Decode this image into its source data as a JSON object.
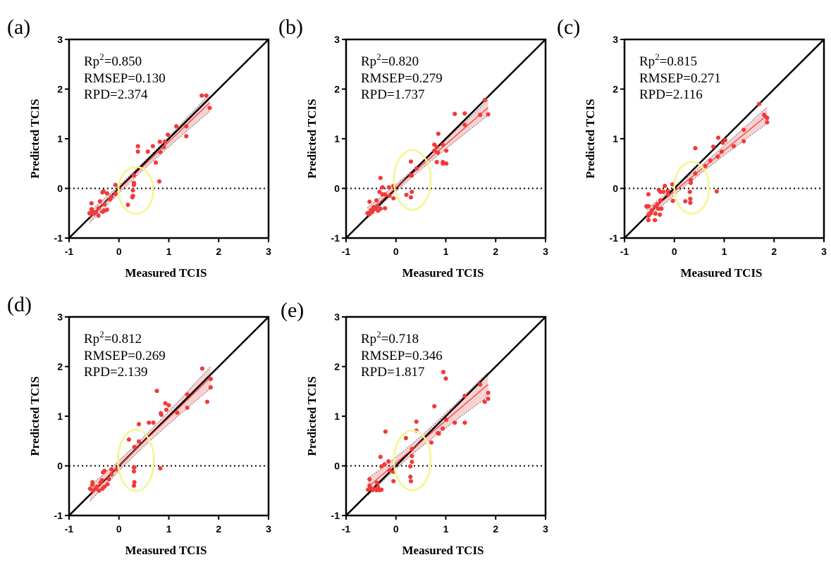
{
  "chart_data": [
    {
      "type": "scatter",
      "panel_label": "(a)",
      "xlabel": "Measured TCIS",
      "ylabel": "Predicted TCIS",
      "xlim": [
        -1,
        3
      ],
      "ylim": [
        -1,
        3
      ],
      "xticks": [
        "-1",
        "0",
        "1",
        "2",
        "3"
      ],
      "yticks": [
        "-1",
        "0",
        "1",
        "2",
        "3"
      ],
      "stats": {
        "Rp2": "0.850",
        "RMSEP": "0.130",
        "RPD": "2.374"
      },
      "highlight_ellipse": {
        "cx": 0.34,
        "cy": -0.04,
        "rx": 0.35,
        "ry": 0.47,
        "color": "#f5f58a"
      },
      "points": [
        [
          1.66,
          1.87
        ],
        [
          1.75,
          1.87
        ],
        [
          1.82,
          1.62
        ],
        [
          1.15,
          1.25
        ],
        [
          1.35,
          1.25
        ],
        [
          1.35,
          1.05
        ],
        [
          0.98,
          1.08
        ],
        [
          0.82,
          0.94
        ],
        [
          0.92,
          0.94
        ],
        [
          0.9,
          0.83
        ],
        [
          0.83,
          0.73
        ],
        [
          0.68,
          0.85
        ],
        [
          0.58,
          0.74
        ],
        [
          0.38,
          0.85
        ],
        [
          0.38,
          0.74
        ],
        [
          0.74,
          0.52
        ],
        [
          0.81,
          0.14
        ],
        [
          0.3,
          0.26
        ],
        [
          0.3,
          0.11
        ],
        [
          0.3,
          0.07
        ],
        [
          0.28,
          -0.04
        ],
        [
          0.28,
          -0.15
        ],
        [
          0.27,
          -0.18
        ],
        [
          0.18,
          -0.33
        ],
        [
          -0.07,
          0.07
        ],
        [
          -0.07,
          -0.11
        ],
        [
          -0.15,
          -0.17
        ],
        [
          -0.18,
          -0.22
        ],
        [
          -0.24,
          -0.1
        ],
        [
          -0.31,
          -0.06
        ],
        [
          -0.33,
          -0.08
        ],
        [
          -0.38,
          -0.26
        ],
        [
          -0.29,
          -0.32
        ],
        [
          -0.55,
          -0.3
        ],
        [
          -0.41,
          -0.4
        ],
        [
          -0.55,
          -0.42
        ],
        [
          -0.59,
          -0.5
        ],
        [
          -0.5,
          -0.51
        ],
        [
          -0.52,
          -0.47
        ],
        [
          -0.41,
          -0.55
        ],
        [
          -0.33,
          -0.47
        ],
        [
          -0.29,
          -0.45
        ],
        [
          -0.24,
          -0.43
        ],
        [
          -0.46,
          -0.48
        ]
      ]
    },
    {
      "type": "scatter",
      "panel_label": "(b)",
      "xlabel": "Measured TCIS",
      "ylabel": "Predicted TCIS",
      "xlim": [
        -1,
        3
      ],
      "ylim": [
        -1,
        3
      ],
      "xticks": [
        "-1",
        "0",
        "1",
        "2",
        "3"
      ],
      "yticks": [
        "-1",
        "0",
        "1",
        "2",
        "3"
      ],
      "stats": {
        "Rp2": "0.820",
        "RMSEP": "0.279",
        "RPD": "1.737"
      },
      "highlight_ellipse": {
        "cx": 0.33,
        "cy": 0.17,
        "rx": 0.37,
        "ry": 0.6,
        "color": "#f5f58a"
      },
      "points": [
        [
          1.78,
          1.78
        ],
        [
          1.85,
          1.49
        ],
        [
          1.69,
          1.48
        ],
        [
          1.38,
          1.51
        ],
        [
          1.18,
          1.5
        ],
        [
          1.38,
          1.28
        ],
        [
          0.85,
          1.1
        ],
        [
          0.77,
          0.88
        ],
        [
          0.82,
          0.83
        ],
        [
          0.77,
          0.76
        ],
        [
          0.94,
          0.88
        ],
        [
          1.01,
          0.76
        ],
        [
          0.84,
          0.72
        ],
        [
          0.82,
          0.53
        ],
        [
          0.94,
          0.53
        ],
        [
          0.94,
          0.5
        ],
        [
          1.01,
          0.5
        ],
        [
          0.3,
          0.54
        ],
        [
          0.41,
          0.4
        ],
        [
          0.3,
          0.26
        ],
        [
          0.32,
          0.26
        ],
        [
          0.21,
          -0.13
        ],
        [
          0.32,
          -0.07
        ],
        [
          0.3,
          -0.18
        ],
        [
          -0.05,
          0.05
        ],
        [
          -0.05,
          -0.2
        ],
        [
          -0.14,
          0.02
        ],
        [
          -0.13,
          -0.15
        ],
        [
          -0.31,
          0.21
        ],
        [
          -0.27,
          0.02
        ],
        [
          -0.33,
          -0.07
        ],
        [
          -0.27,
          -0.12
        ],
        [
          -0.22,
          -0.12
        ],
        [
          -0.39,
          -0.24
        ],
        [
          -0.53,
          -0.27
        ],
        [
          -0.38,
          -0.36
        ],
        [
          -0.31,
          -0.41
        ],
        [
          -0.22,
          -0.4
        ],
        [
          -0.36,
          -0.45
        ],
        [
          -0.45,
          -0.38
        ],
        [
          -0.5,
          -0.44
        ],
        [
          -0.57,
          -0.5
        ],
        [
          -0.53,
          -0.52
        ],
        [
          -0.48,
          -0.48
        ],
        [
          -0.43,
          -0.41
        ]
      ]
    },
    {
      "type": "scatter",
      "panel_label": "(c)",
      "xlabel": "Measured TCIS",
      "ylabel": "Predicted TCIS",
      "xlim": [
        -1,
        3
      ],
      "ylim": [
        -1,
        3
      ],
      "xticks": [
        "-1",
        "0",
        "1",
        "2",
        "3"
      ],
      "yticks": [
        "-1",
        "0",
        "1",
        "2",
        "3"
      ],
      "stats": {
        "Rp2": "0.815",
        "RMSEP": "0.271",
        "RPD": "2.116"
      },
      "highlight_ellipse": {
        "cx": 0.35,
        "cy": 0.01,
        "rx": 0.35,
        "ry": 0.52,
        "color": "#f5f58a"
      },
      "points": [
        [
          1.7,
          1.7
        ],
        [
          1.8,
          1.48
        ],
        [
          1.86,
          1.42
        ],
        [
          1.86,
          1.33
        ],
        [
          1.39,
          1.18
        ],
        [
          1.39,
          0.95
        ],
        [
          1.19,
          0.85
        ],
        [
          1.02,
          0.97
        ],
        [
          0.97,
          0.92
        ],
        [
          0.88,
          1.02
        ],
        [
          0.78,
          0.84
        ],
        [
          0.95,
          0.74
        ],
        [
          0.87,
          0.64
        ],
        [
          0.72,
          0.56
        ],
        [
          0.62,
          0.45
        ],
        [
          0.42,
          0.81
        ],
        [
          0.42,
          0.3
        ],
        [
          0.33,
          0.17
        ],
        [
          0.33,
          0.11
        ],
        [
          0.31,
          -0.07
        ],
        [
          0.32,
          -0.21
        ],
        [
          0.32,
          -0.29
        ],
        [
          0.22,
          -0.26
        ],
        [
          0.85,
          -0.06
        ],
        [
          -0.04,
          0.08
        ],
        [
          -0.03,
          -0.25
        ],
        [
          -0.13,
          -0.05
        ],
        [
          -0.13,
          -0.12
        ],
        [
          -0.19,
          0.05
        ],
        [
          -0.22,
          -0.07
        ],
        [
          -0.28,
          -0.07
        ],
        [
          -0.31,
          -0.03
        ],
        [
          -0.28,
          -0.24
        ],
        [
          -0.52,
          -0.12
        ],
        [
          -0.34,
          -0.32
        ],
        [
          -0.39,
          -0.37
        ],
        [
          -0.56,
          -0.36
        ],
        [
          -0.52,
          -0.36
        ],
        [
          -0.26,
          -0.41
        ],
        [
          -0.32,
          -0.41
        ],
        [
          -0.45,
          -0.44
        ],
        [
          -0.38,
          -0.51
        ],
        [
          -0.29,
          -0.53
        ],
        [
          -0.48,
          -0.5
        ],
        [
          -0.52,
          -0.55
        ],
        [
          -0.52,
          -0.64
        ],
        [
          -0.39,
          -0.64
        ]
      ]
    },
    {
      "type": "scatter",
      "panel_label": "(d)",
      "xlabel": "Measured TCIS",
      "ylabel": "Predicted TCIS",
      "xlim": [
        -1,
        3
      ],
      "ylim": [
        -1,
        3
      ],
      "xticks": [
        "-1",
        "0",
        "1",
        "2",
        "3"
      ],
      "yticks": [
        "-1",
        "0",
        "1",
        "2",
        "3"
      ],
      "stats": {
        "Rp2": "0.812",
        "RMSEP": "0.269",
        "RPD": "2.139"
      },
      "highlight_ellipse": {
        "cx": 0.34,
        "cy": 0.11,
        "rx": 0.36,
        "ry": 0.62,
        "color": "#f5f58a"
      },
      "points": [
        [
          1.67,
          1.96
        ],
        [
          1.84,
          1.75
        ],
        [
          1.84,
          1.58
        ],
        [
          1.77,
          1.29
        ],
        [
          1.37,
          1.44
        ],
        [
          1.37,
          1.17
        ],
        [
          1.17,
          1.07
        ],
        [
          0.93,
          1.26
        ],
        [
          1.0,
          1.22
        ],
        [
          0.95,
          1.13
        ],
        [
          0.84,
          1.06
        ],
        [
          0.85,
          1.03
        ],
        [
          0.76,
          1.51
        ],
        [
          0.6,
          0.87
        ],
        [
          0.69,
          0.87
        ],
        [
          0.4,
          0.84
        ],
        [
          0.4,
          0.49
        ],
        [
          0.2,
          0.53
        ],
        [
          0.31,
          0.38
        ],
        [
          0.3,
          -0.03
        ],
        [
          0.31,
          -0.03
        ],
        [
          0.3,
          -0.11
        ],
        [
          0.31,
          -0.33
        ],
        [
          0.3,
          -0.4
        ],
        [
          0.83,
          -0.05
        ],
        [
          -0.05,
          -0.07
        ],
        [
          -0.15,
          -0.07
        ],
        [
          -0.15,
          -0.17
        ],
        [
          -0.29,
          -0.1
        ],
        [
          -0.32,
          -0.13
        ],
        [
          -0.2,
          -0.27
        ],
        [
          -0.23,
          -0.37
        ],
        [
          -0.34,
          -0.29
        ],
        [
          -0.37,
          -0.34
        ],
        [
          -0.29,
          -0.42
        ],
        [
          -0.33,
          -0.46
        ],
        [
          -0.4,
          -0.5
        ],
        [
          -0.47,
          -0.46
        ],
        [
          -0.53,
          -0.33
        ],
        [
          -0.53,
          -0.38
        ],
        [
          -0.58,
          -0.46
        ],
        [
          -0.52,
          -0.5
        ],
        [
          -0.44,
          -0.42
        ]
      ]
    },
    {
      "type": "scatter",
      "panel_label": "(e)",
      "xlabel": "Measured TCIS",
      "ylabel": "Predicted TCIS",
      "xlim": [
        -1,
        3
      ],
      "ylim": [
        -1,
        3
      ],
      "xticks": [
        "-1",
        "0",
        "1",
        "2",
        "3"
      ],
      "yticks": [
        "-1",
        "0",
        "1",
        "2",
        "3"
      ],
      "stats": {
        "Rp2": "0.718",
        "RMSEP": "0.346",
        "RPD": "1.817"
      },
      "highlight_ellipse": {
        "cx": 0.33,
        "cy": 0.11,
        "rx": 0.37,
        "ry": 0.6,
        "color": "#f5f58a"
      },
      "points": [
        [
          0.95,
          1.89
        ],
        [
          1.0,
          1.76
        ],
        [
          1.69,
          1.64
        ],
        [
          1.38,
          1.41
        ],
        [
          1.85,
          1.47
        ],
        [
          1.85,
          1.35
        ],
        [
          1.78,
          1.29
        ],
        [
          0.77,
          1.2
        ],
        [
          1.01,
          0.93
        ],
        [
          1.18,
          0.87
        ],
        [
          1.38,
          0.87
        ],
        [
          0.94,
          0.75
        ],
        [
          0.84,
          0.66
        ],
        [
          0.86,
          0.65
        ],
        [
          0.71,
          0.47
        ],
        [
          0.41,
          0.89
        ],
        [
          0.41,
          0.71
        ],
        [
          0.2,
          0.56
        ],
        [
          0.32,
          0.34
        ],
        [
          0.32,
          0.2
        ],
        [
          0.32,
          0.08
        ],
        [
          0.29,
          -0.01
        ],
        [
          0.29,
          -0.22
        ],
        [
          0.3,
          -0.31
        ],
        [
          -0.21,
          0.69
        ],
        [
          -0.31,
          0.18
        ],
        [
          -0.23,
          0.03
        ],
        [
          -0.15,
          0.09
        ],
        [
          -0.29,
          -0.01
        ],
        [
          -0.13,
          -0.09
        ],
        [
          -0.05,
          -0.12
        ],
        [
          -0.05,
          -0.31
        ],
        [
          -0.53,
          -0.27
        ],
        [
          -0.38,
          -0.34
        ],
        [
          -0.36,
          -0.43
        ],
        [
          -0.29,
          -0.48
        ],
        [
          -0.33,
          -0.49
        ],
        [
          -0.39,
          -0.49
        ],
        [
          -0.47,
          -0.49
        ],
        [
          -0.56,
          -0.48
        ],
        [
          -0.52,
          -0.44
        ],
        [
          -0.45,
          -0.46
        ],
        [
          -0.53,
          -0.4
        ]
      ]
    }
  ],
  "colors": {
    "points": "#f23a3a",
    "fit_line": "#f04040",
    "band": "#f9c9c9",
    "identity_line": "#000000",
    "ellipse": "#f5f58a"
  }
}
